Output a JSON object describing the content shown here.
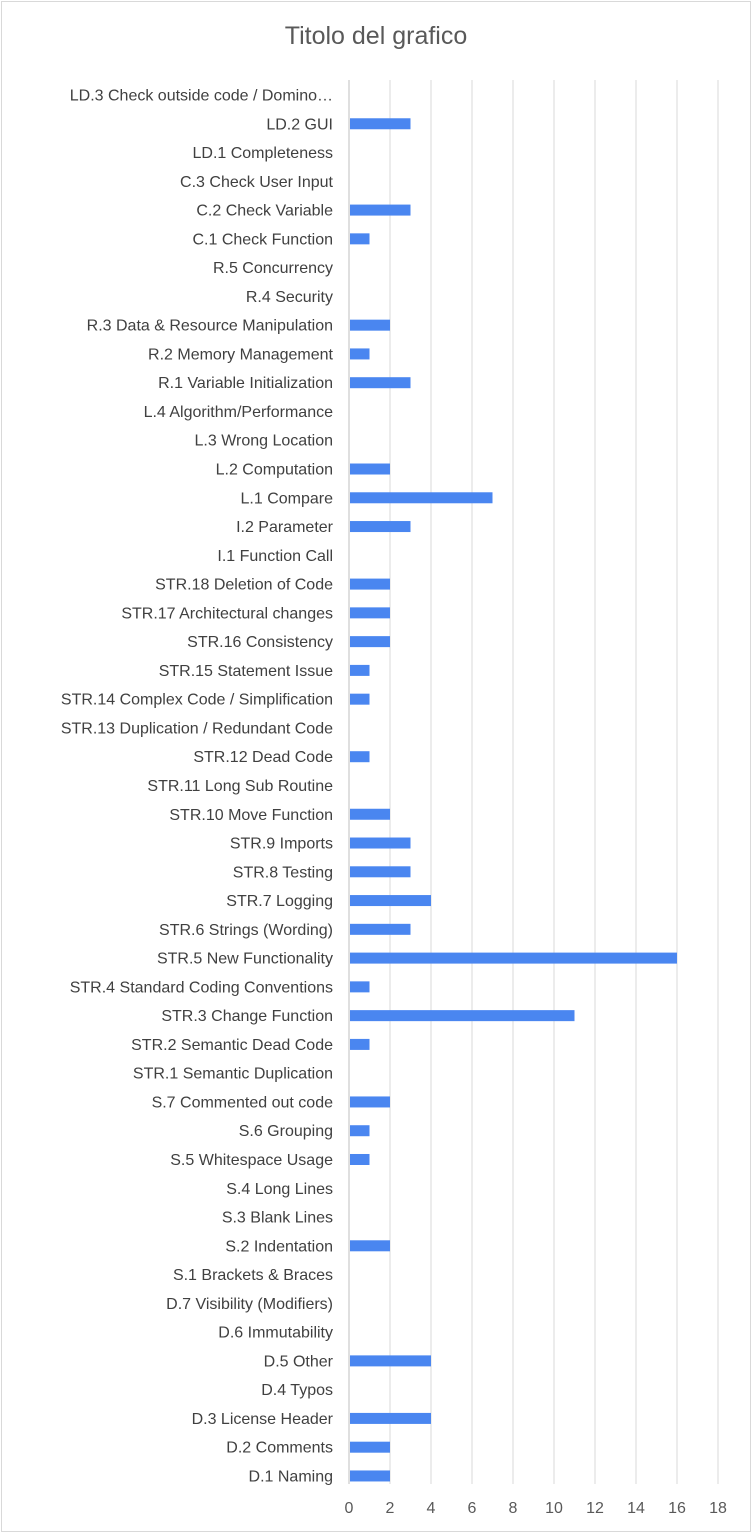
{
  "chart_data": {
    "type": "bar",
    "orientation": "horizontal",
    "title": "Titolo del grafico",
    "xlabel": "",
    "ylabel": "",
    "xlim": [
      0,
      18
    ],
    "x_ticks": [
      0,
      2,
      4,
      6,
      8,
      10,
      12,
      14,
      16,
      18
    ],
    "grid": true,
    "legend": "none",
    "bar_color": "#4a86f0",
    "categories": [
      "LD.3 Check outside code / Domino…",
      "LD.2 GUI",
      "LD.1 Completeness",
      "C.3 Check User Input",
      "C.2 Check Variable",
      "C.1 Check Function",
      "R.5 Concurrency",
      "R.4 Security",
      "R.3 Data & Resource Manipulation",
      "R.2 Memory Management",
      "R.1 Variable Initialization",
      "L.4 Algorithm/Performance",
      "L.3 Wrong Location",
      "L.2 Computation",
      "L.1 Compare",
      "I.2 Parameter",
      "I.1 Function Call",
      "STR.18 Deletion of Code",
      "STR.17 Architectural changes",
      "STR.16 Consistency",
      "STR.15 Statement Issue",
      "STR.14 Complex Code / Simplification",
      "STR.13 Duplication / Redundant Code",
      "STR.12 Dead Code",
      "STR.11 Long Sub Routine",
      "STR.10 Move Function",
      "STR.9 Imports",
      "STR.8 Testing",
      "STR.7 Logging",
      "STR.6 Strings (Wording)",
      "STR.5 New Functionality",
      "STR.4 Standard Coding Conventions",
      "STR.3 Change Function",
      "STR.2 Semantic Dead Code",
      "STR.1 Semantic Duplication",
      "S.7 Commented out code",
      "S.6 Grouping",
      "S.5 Whitespace Usage",
      "S.4 Long Lines",
      "S.3 Blank Lines",
      "S.2 Indentation",
      "S.1 Brackets & Braces",
      "D.7 Visibility (Modifiers)",
      "D.6 Immutability",
      "D.5 Other",
      "D.4 Typos",
      "D.3 License Header",
      "D.2 Comments",
      "D.1 Naming"
    ],
    "values": [
      0,
      3,
      0,
      0,
      3,
      1,
      0,
      0,
      2,
      1,
      3,
      0,
      0,
      2,
      7,
      3,
      0,
      2,
      2,
      2,
      1,
      1,
      0,
      1,
      0,
      2,
      3,
      3,
      4,
      3,
      16,
      1,
      11,
      1,
      0,
      2,
      1,
      1,
      0,
      0,
      2,
      0,
      0,
      0,
      4,
      0,
      4,
      2,
      2
    ]
  }
}
